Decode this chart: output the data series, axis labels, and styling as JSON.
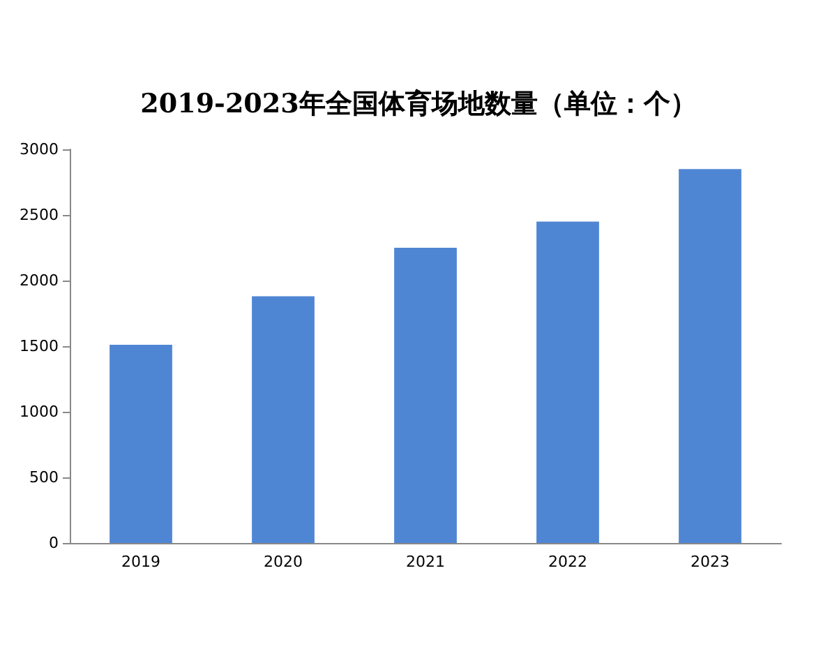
{
  "chart_data": {
    "type": "bar",
    "title": "2019-2023年全国体育场地数量（单位：个）",
    "categories": [
      "2019",
      "2020",
      "2021",
      "2022",
      "2023"
    ],
    "values": [
      1510,
      1880,
      2250,
      2450,
      2850
    ],
    "color": "#4f86d4",
    "ylim": [
      0,
      3000
    ],
    "yticks": [
      0,
      500,
      1000,
      1500,
      2000,
      2500,
      3000
    ],
    "grid": false
  }
}
